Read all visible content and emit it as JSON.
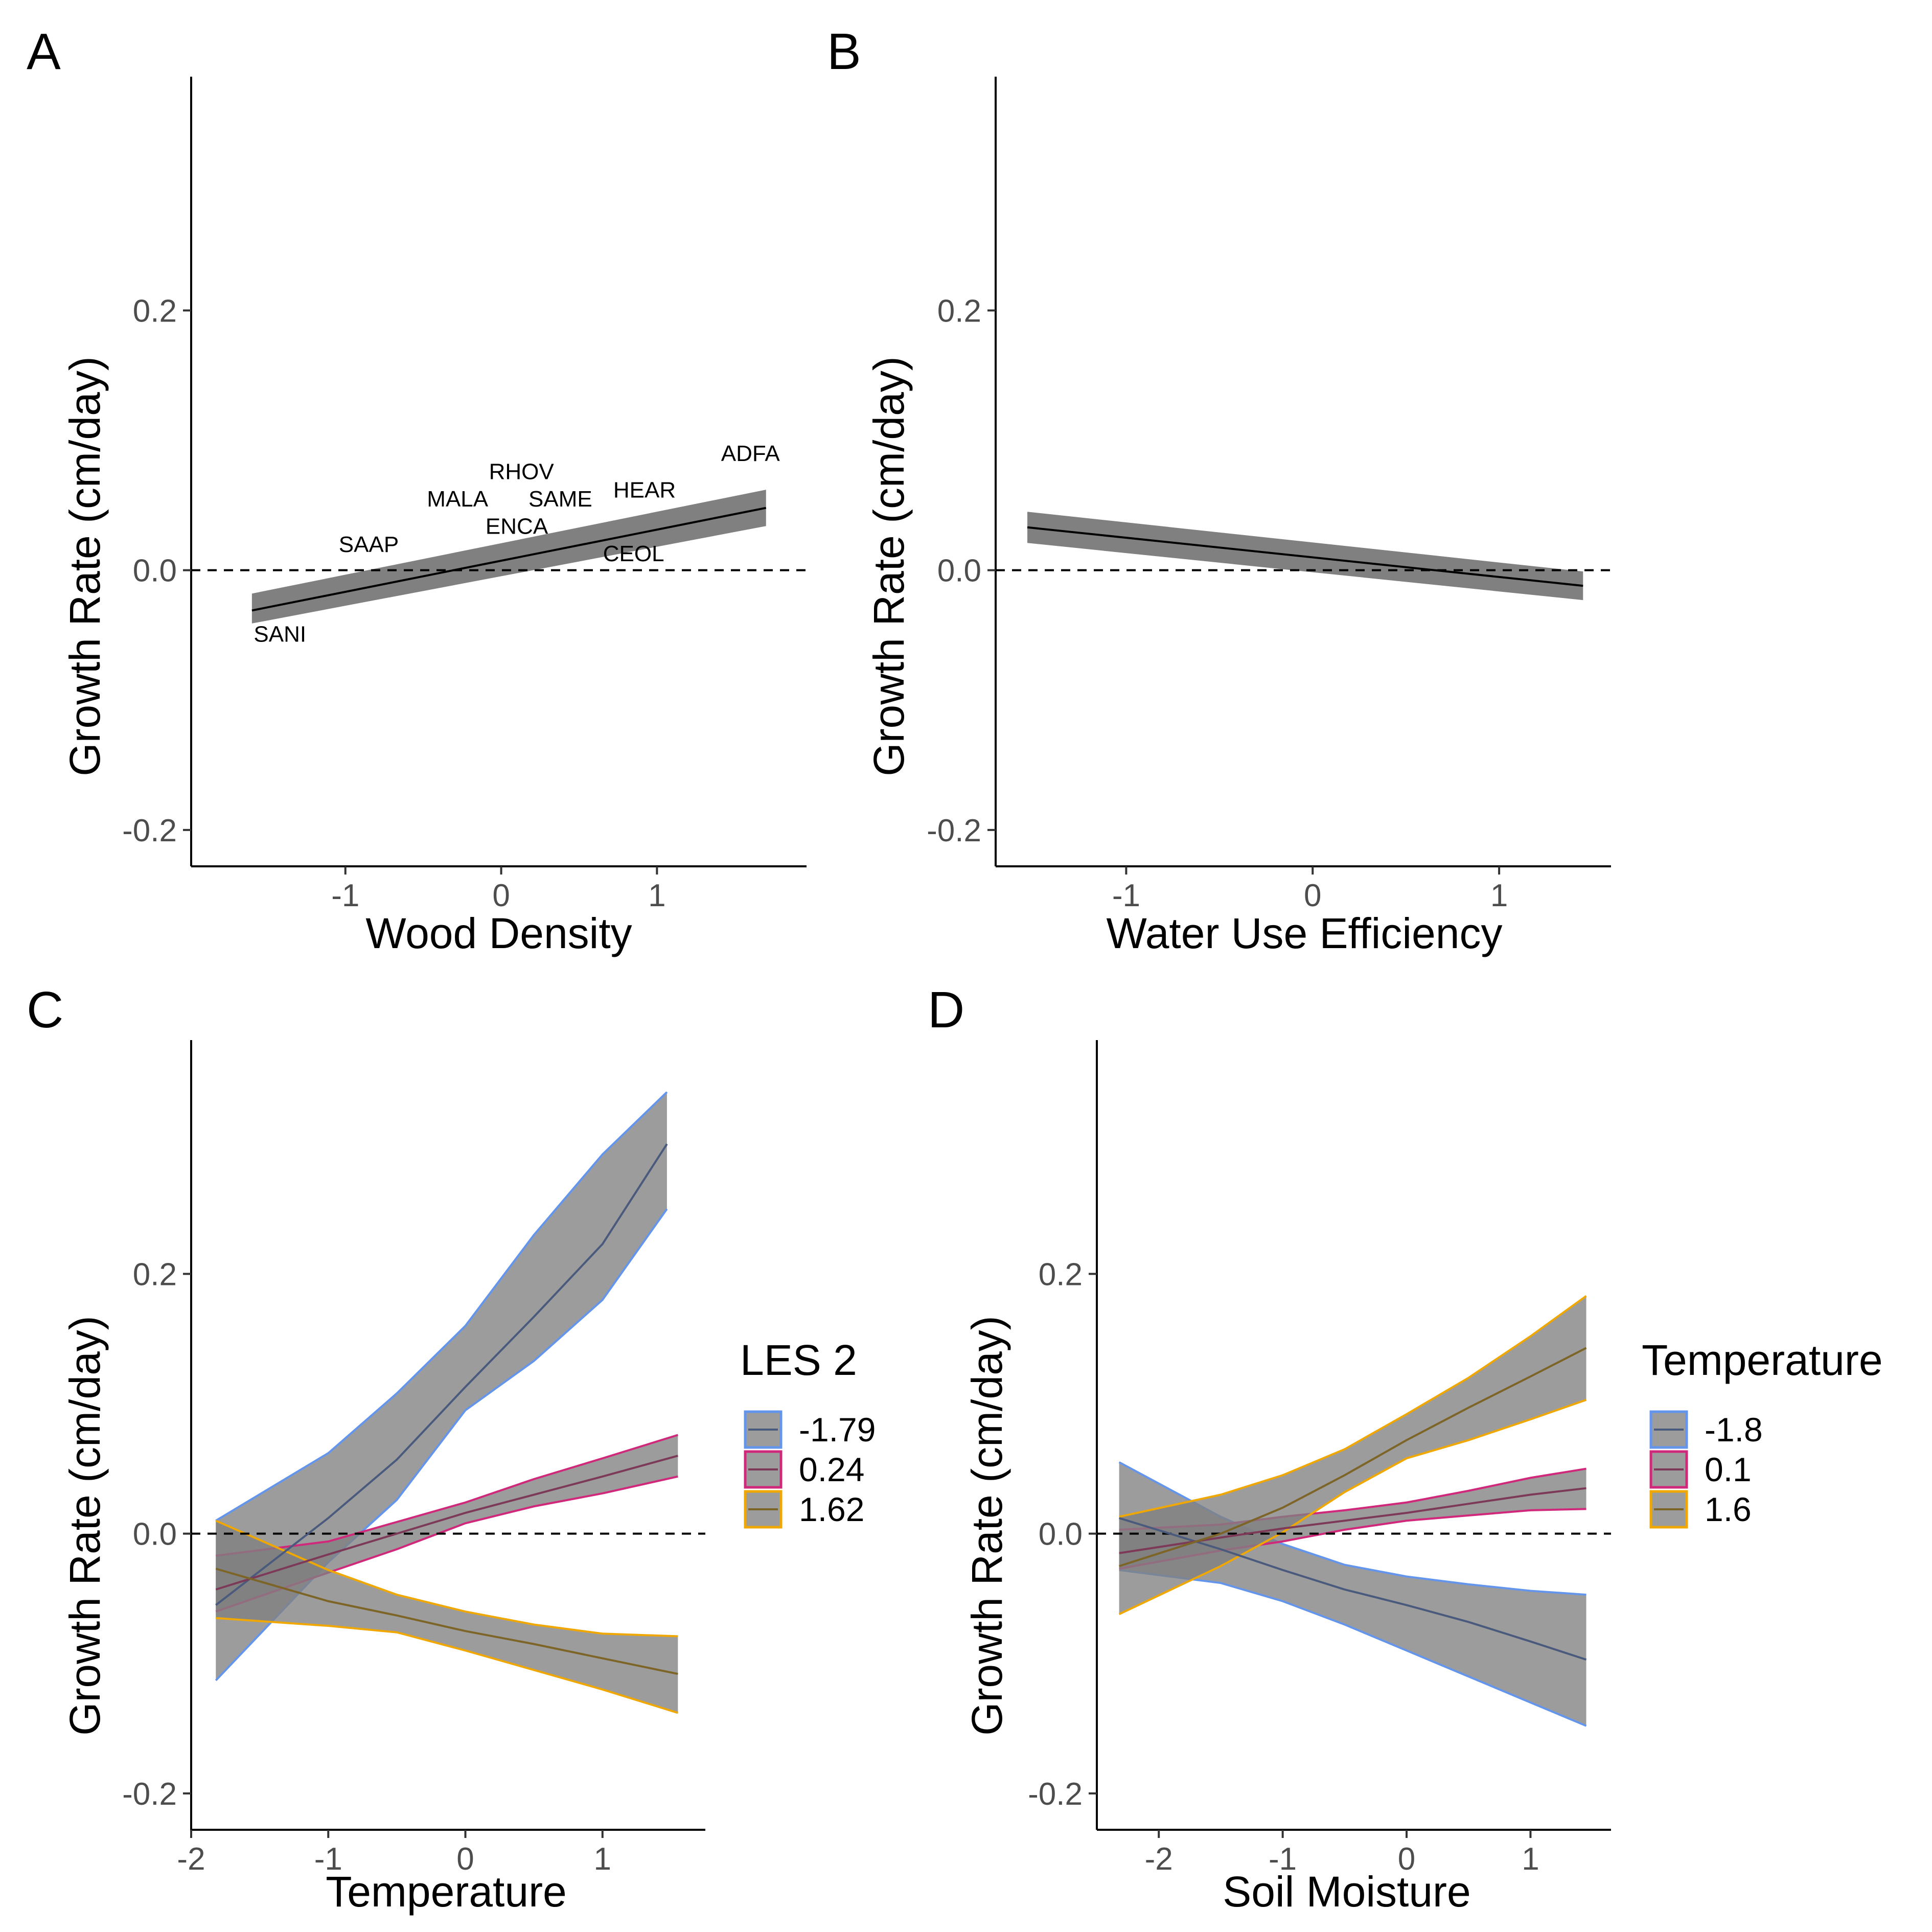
{
  "figure": {
    "panels": [
      "A",
      "B",
      "C",
      "D"
    ]
  },
  "chart_data": [
    {
      "panel": "A",
      "type": "line",
      "title": "",
      "xlabel": "Wood Density",
      "ylabel": "Growth Rate (cm/day)",
      "xlim": [
        -1.99,
        1.96
      ],
      "ylim": [
        -0.228,
        0.38
      ],
      "x_ticks": [
        -1,
        0,
        1
      ],
      "x_tick_labels": [
        "-1",
        "0",
        "1"
      ],
      "y_ticks": [
        -0.2,
        0.0,
        0.2
      ],
      "y_tick_labels": [
        "-0.2",
        "0.0",
        "0.2"
      ],
      "reference_line": 0.0,
      "grid": false,
      "series": [
        {
          "x": [
            -1.6,
            1.7
          ],
          "y": [
            -0.031,
            0.048
          ],
          "lower": [
            -0.041,
            0.034
          ],
          "upper": [
            -0.018,
            0.062
          ],
          "line_color": "#000000",
          "ribbon_color": "#808080"
        }
      ],
      "annotations": [
        {
          "text": "SANI",
          "x": -1.42,
          "y": -0.055
        },
        {
          "text": "SAAP",
          "x": -0.85,
          "y": 0.014
        },
        {
          "text": "MALA",
          "x": -0.28,
          "y": 0.049
        },
        {
          "text": "RHOV",
          "x": 0.13,
          "y": 0.07
        },
        {
          "text": "SAME",
          "x": 0.38,
          "y": 0.049
        },
        {
          "text": "ENCA",
          "x": 0.1,
          "y": 0.028
        },
        {
          "text": "HEAR",
          "x": 0.92,
          "y": 0.056
        },
        {
          "text": "CEOL",
          "x": 0.85,
          "y": 0.007
        },
        {
          "text": "ADFA",
          "x": 1.6,
          "y": 0.084
        }
      ]
    },
    {
      "panel": "B",
      "type": "line",
      "title": "",
      "xlabel": "Water Use Efficiency",
      "ylabel": "Growth Rate (cm/day)",
      "xlim": [
        -1.7,
        1.6
      ],
      "ylim": [
        -0.228,
        0.38
      ],
      "x_ticks": [
        -1,
        0,
        1
      ],
      "x_tick_labels": [
        "-1",
        "0",
        "1"
      ],
      "y_ticks": [
        -0.2,
        0.0,
        0.2
      ],
      "y_tick_labels": [
        "-0.2",
        "0.0",
        "0.2"
      ],
      "reference_line": 0.0,
      "grid": false,
      "series": [
        {
          "x": [
            -1.53,
            1.45
          ],
          "y": [
            0.033,
            -0.012
          ],
          "lower": [
            0.021,
            -0.023
          ],
          "upper": [
            0.045,
            -0.001
          ],
          "line_color": "#000000",
          "ribbon_color": "#808080"
        }
      ]
    },
    {
      "panel": "C",
      "type": "line",
      "title": "",
      "xlabel": "Temperature",
      "ylabel": "Growth Rate (cm/day)",
      "xlim": [
        -2.0,
        1.75
      ],
      "ylim": [
        -0.228,
        0.38
      ],
      "x_ticks": [
        -2,
        -1,
        0,
        1
      ],
      "x_tick_labels": [
        "-2",
        "-1",
        "0",
        "1"
      ],
      "y_ticks": [
        -0.2,
        0.0,
        0.2
      ],
      "y_tick_labels": [
        "-0.2",
        "0.0",
        "0.2"
      ],
      "reference_line": 0.0,
      "grid": false,
      "legend": {
        "title": "LES 2",
        "position": "right",
        "entries": [
          "-1.79",
          "0.24",
          "1.62"
        ]
      },
      "series": [
        {
          "name": "-1.79",
          "color": "#6495ed",
          "line_color": "#4a5a7d",
          "x": [
            -1.82,
            -1.0,
            -0.5,
            0.0,
            0.5,
            1.0,
            1.47
          ],
          "y": [
            -0.055,
            0.012,
            0.057,
            0.113,
            0.167,
            0.223,
            0.3
          ],
          "lower": [
            -0.113,
            -0.022,
            0.026,
            0.095,
            0.133,
            0.18,
            0.25
          ],
          "upper": [
            0.01,
            0.062,
            0.108,
            0.16,
            0.23,
            0.292,
            0.34
          ]
        },
        {
          "name": "0.24",
          "color": "#d0287a",
          "line_color": "#7d3a58",
          "x": [
            -1.82,
            -1.0,
            -0.5,
            0.0,
            0.5,
            1.0,
            1.55
          ],
          "y": [
            -0.043,
            -0.016,
            0.0,
            0.016,
            0.03,
            0.044,
            0.06
          ],
          "lower": [
            -0.06,
            -0.03,
            -0.012,
            0.008,
            0.021,
            0.031,
            0.044
          ],
          "upper": [
            -0.017,
            -0.006,
            0.009,
            0.024,
            0.042,
            0.058,
            0.076
          ]
        },
        {
          "name": "1.62",
          "color": "#f0a800",
          "line_color": "#7d6427",
          "x": [
            -1.82,
            -1.0,
            -0.5,
            0.0,
            0.5,
            1.0,
            1.55
          ],
          "y": [
            -0.027,
            -0.052,
            -0.063,
            -0.075,
            -0.085,
            -0.096,
            -0.108
          ],
          "lower": [
            -0.065,
            -0.071,
            -0.076,
            -0.09,
            -0.105,
            -0.12,
            -0.138
          ],
          "upper": [
            0.01,
            -0.028,
            -0.047,
            -0.06,
            -0.07,
            -0.077,
            -0.079
          ]
        }
      ]
    },
    {
      "panel": "D",
      "type": "line",
      "title": "",
      "xlabel": "Soil Moisture",
      "ylabel": "Growth Rate (cm/day)",
      "xlim": [
        -2.5,
        1.65
      ],
      "ylim": [
        -0.228,
        0.38
      ],
      "x_ticks": [
        -2,
        -1,
        0,
        1
      ],
      "x_tick_labels": [
        "-2",
        "-1",
        "0",
        "1"
      ],
      "y_ticks": [
        -0.2,
        0.0,
        0.2
      ],
      "y_tick_labels": [
        "-0.2",
        "0.0",
        "0.2"
      ],
      "reference_line": 0.0,
      "grid": false,
      "legend": {
        "title": "Temperature",
        "position": "right",
        "entries": [
          "-1.8",
          "0.1",
          "1.6"
        ]
      },
      "series": [
        {
          "name": "-1.8",
          "color": "#6495ed",
          "line_color": "#4a5a7d",
          "x": [
            -2.32,
            -1.5,
            -1.0,
            -0.5,
            0.0,
            0.5,
            1.0,
            1.45
          ],
          "y": [
            0.012,
            -0.012,
            -0.028,
            -0.043,
            -0.055,
            -0.068,
            -0.083,
            -0.097
          ],
          "lower": [
            -0.028,
            -0.038,
            -0.052,
            -0.07,
            -0.09,
            -0.11,
            -0.13,
            -0.148
          ],
          "upper": [
            0.055,
            0.013,
            -0.008,
            -0.024,
            -0.033,
            -0.039,
            -0.044,
            -0.047
          ]
        },
        {
          "name": "0.1",
          "color": "#d0287a",
          "line_color": "#7d3a58",
          "x": [
            -2.32,
            -1.5,
            -1.0,
            -0.5,
            0.0,
            0.5,
            1.0,
            1.45
          ],
          "y": [
            -0.015,
            -0.003,
            0.004,
            0.01,
            0.016,
            0.023,
            0.03,
            0.035
          ],
          "lower": [
            -0.027,
            -0.013,
            -0.006,
            0.003,
            0.01,
            0.014,
            0.018,
            0.019
          ],
          "upper": [
            0.003,
            0.007,
            0.013,
            0.018,
            0.024,
            0.033,
            0.043,
            0.05
          ]
        },
        {
          "name": "1.6",
          "color": "#f0a800",
          "line_color": "#7d6427",
          "x": [
            -2.32,
            -1.5,
            -1.0,
            -0.5,
            0.0,
            0.5,
            1.0,
            1.45
          ],
          "y": [
            -0.025,
            0.0,
            0.02,
            0.045,
            0.072,
            0.097,
            0.121,
            0.143
          ],
          "lower": [
            -0.062,
            -0.025,
            0.001,
            0.032,
            0.058,
            0.072,
            0.088,
            0.103
          ],
          "upper": [
            0.013,
            0.03,
            0.045,
            0.065,
            0.092,
            0.12,
            0.152,
            0.183
          ]
        }
      ]
    }
  ]
}
